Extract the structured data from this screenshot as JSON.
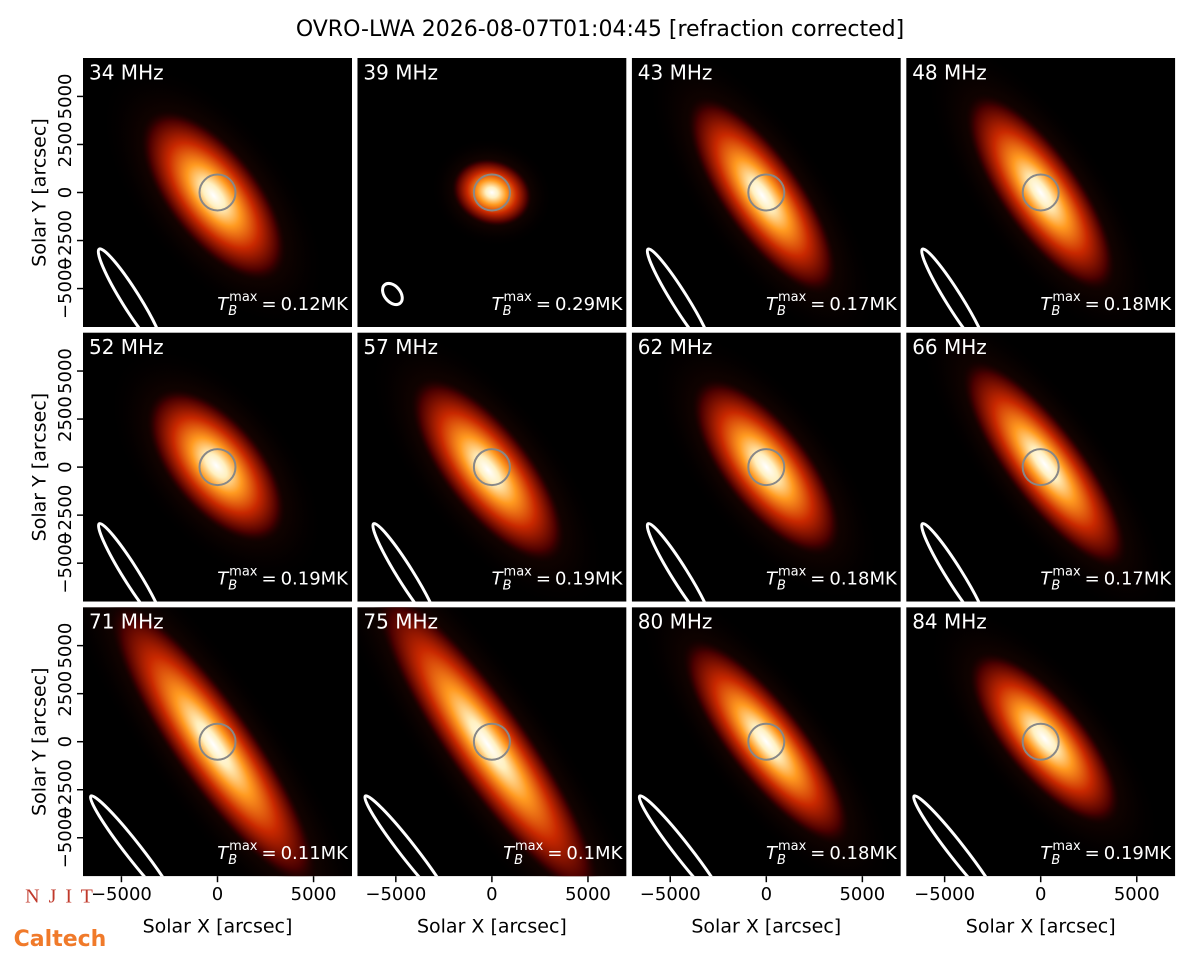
{
  "title": "OVRO-LWA 2026-08-07T01:04:45 [refraction corrected]",
  "tb_symbol": "T",
  "tb_sub": "B",
  "tb_sup": "max",
  "tb_equals": "=",
  "logos": [
    "N J I T",
    "Caltech"
  ],
  "chart_data": [
    {
      "type": "image",
      "title": "34 MHz",
      "tb_max": "0.12MK",
      "xlim": [
        -7000,
        7000
      ],
      "ylim": [
        -7000,
        7000
      ],
      "ylabel": "Solar Y [arcsec]",
      "yticks": [
        {
          "value": -5000,
          "label": "−5000"
        },
        {
          "value": -2500,
          "label": "−2500"
        },
        0,
        2500,
        5000
      ]
    },
    {
      "type": "image",
      "title": "39 MHz",
      "tb_max": "0.29MK",
      "xlim": [
        -7000,
        7000
      ],
      "ylim": [
        -7000,
        7000
      ]
    },
    {
      "type": "image",
      "title": "43 MHz",
      "tb_max": "0.17MK",
      "xlim": [
        -7000,
        7000
      ],
      "ylim": [
        -7000,
        7000
      ]
    },
    {
      "type": "image",
      "title": "48 MHz",
      "tb_max": "0.18MK",
      "xlim": [
        -7000,
        7000
      ],
      "ylim": [
        -7000,
        7000
      ]
    },
    {
      "type": "image",
      "title": "52 MHz",
      "tb_max": "0.19MK",
      "xlim": [
        -7000,
        7000
      ],
      "ylim": [
        -7000,
        7000
      ],
      "ylabel": "Solar Y [arcsec]",
      "yticks": [
        {
          "value": -5000,
          "label": "−5000"
        },
        {
          "value": -2500,
          "label": "−2500"
        },
        0,
        2500,
        5000
      ]
    },
    {
      "type": "image",
      "title": "57 MHz",
      "tb_max": "0.19MK",
      "xlim": [
        -7000,
        7000
      ],
      "ylim": [
        -7000,
        7000
      ]
    },
    {
      "type": "image",
      "title": "62 MHz",
      "tb_max": "0.18MK",
      "xlim": [
        -7000,
        7000
      ],
      "ylim": [
        -7000,
        7000
      ]
    },
    {
      "type": "image",
      "title": "66 MHz",
      "tb_max": "0.17MK",
      "xlim": [
        -7000,
        7000
      ],
      "ylim": [
        -7000,
        7000
      ]
    },
    {
      "type": "image",
      "title": "71 MHz",
      "tb_max": "0.11MK",
      "xlim": [
        -7000,
        7000
      ],
      "ylim": [
        -7000,
        7000
      ],
      "ylabel": "Solar Y [arcsec]",
      "xlabel": "Solar X [arcsec]",
      "yticks": [
        {
          "value": -5000,
          "label": "−5000"
        },
        {
          "value": -2500,
          "label": "−2500"
        },
        0,
        2500,
        5000
      ],
      "xticks": [
        {
          "value": -5000,
          "label": "−5000"
        },
        0,
        5000
      ]
    },
    {
      "type": "image",
      "title": "75 MHz",
      "tb_max": "0.1MK",
      "xlim": [
        -7000,
        7000
      ],
      "ylim": [
        -7000,
        7000
      ],
      "xlabel": "Solar X [arcsec]",
      "xticks": [
        {
          "value": -5000,
          "label": "−5000"
        },
        0,
        5000
      ]
    },
    {
      "type": "image",
      "title": "80 MHz",
      "tb_max": "0.18MK",
      "xlim": [
        -7000,
        7000
      ],
      "ylim": [
        -7000,
        7000
      ],
      "xlabel": "Solar X [arcsec]",
      "xticks": [
        {
          "value": -5000,
          "label": "−5000"
        },
        0,
        5000
      ]
    },
    {
      "type": "image",
      "title": "84 MHz",
      "tb_max": "0.19MK",
      "xlim": [
        -7000,
        7000
      ],
      "ylim": [
        -7000,
        7000
      ],
      "xlabel": "Solar X [arcsec]",
      "xticks": [
        {
          "value": -5000,
          "label": "−5000"
        },
        0,
        5000
      ]
    }
  ]
}
